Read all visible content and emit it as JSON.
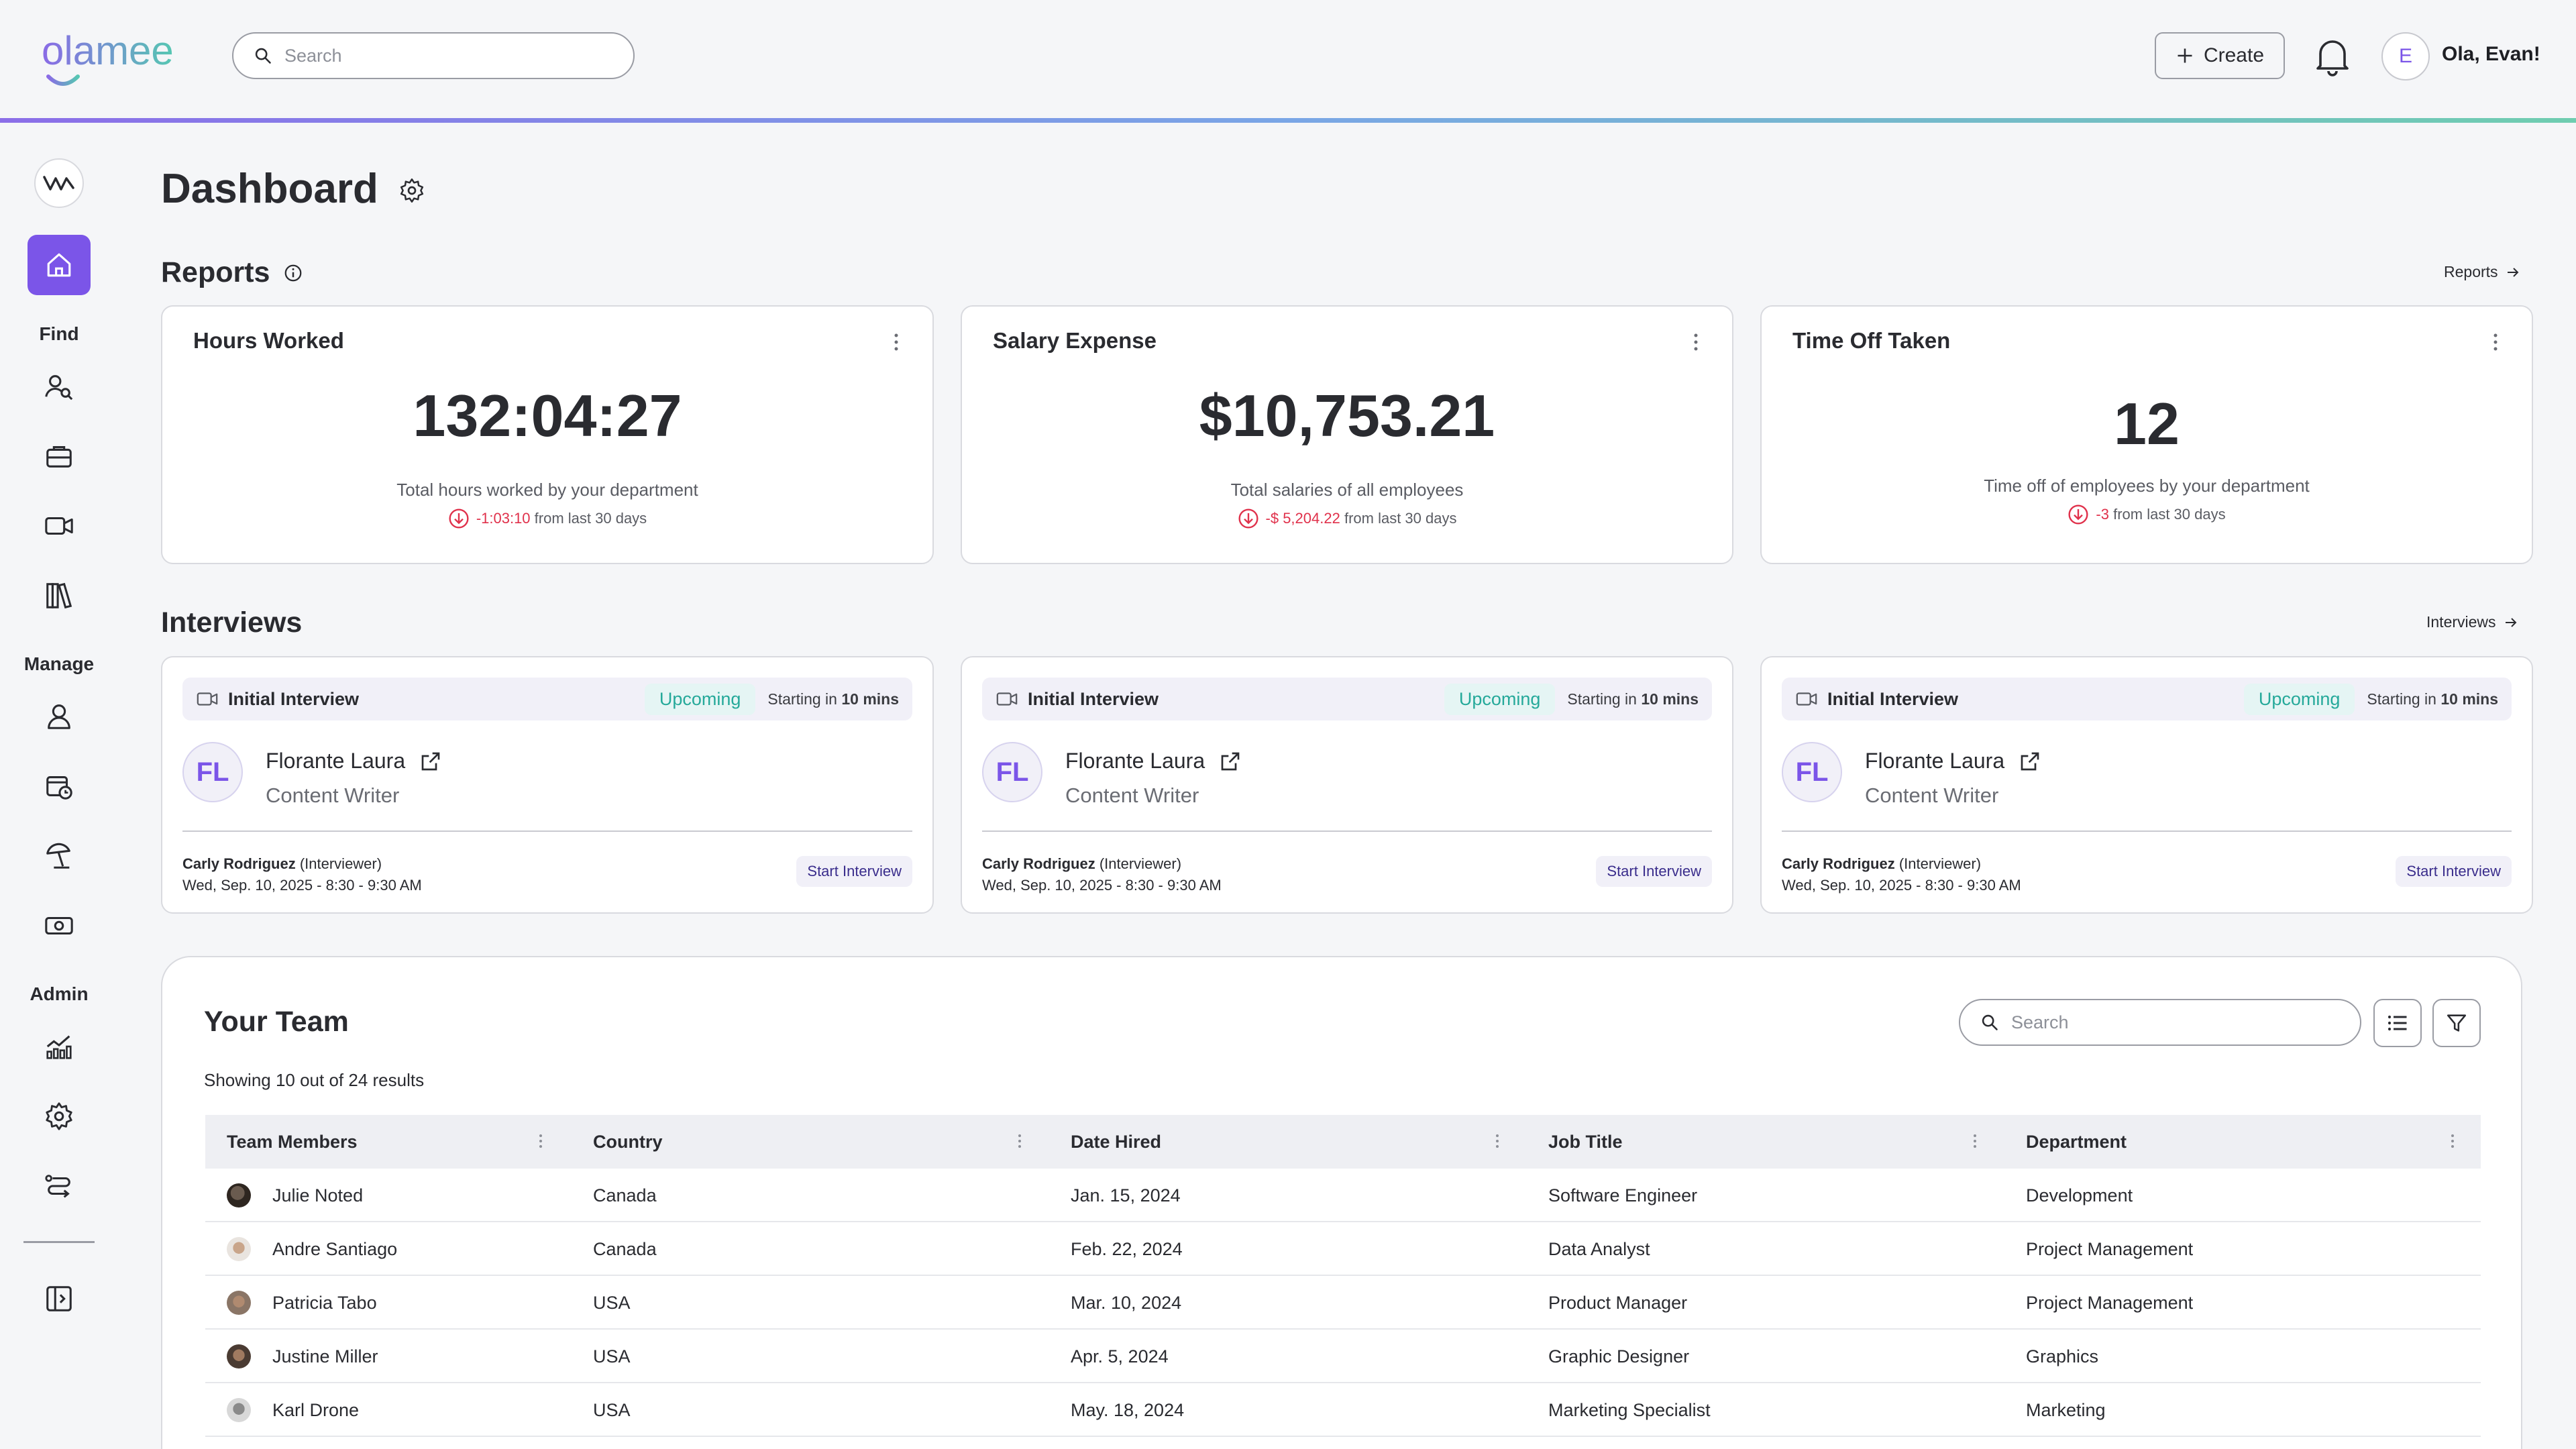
{
  "header": {
    "brand": "olamee",
    "search_placeholder": "Search",
    "create_label": "Create",
    "avatar_initial": "E",
    "greeting": "Ola, Evan!"
  },
  "sidebar": {
    "sections": [
      {
        "label": "Find",
        "items": [
          "people-search-icon",
          "briefcase-icon",
          "video-icon",
          "library-icon"
        ]
      },
      {
        "label": "Manage",
        "items": [
          "person-icon",
          "calendar-clock-icon",
          "beach-umbrella-icon",
          "money-icon"
        ]
      },
      {
        "label": "Admin",
        "items": [
          "analytics-icon",
          "gear-icon",
          "workflow-icon"
        ]
      }
    ]
  },
  "page": {
    "title": "Dashboard"
  },
  "reports": {
    "title": "Reports",
    "link": "Reports",
    "cards": [
      {
        "title": "Hours Worked",
        "value": "132:04:27",
        "sub": "Total hours worked by your department",
        "delta": "-1:03:10",
        "delta_suffix": "from last 30 days"
      },
      {
        "title": "Salary Expense",
        "value": "$10,753.21",
        "sub": "Total salaries of all employees",
        "delta": "-$ 5,204.22",
        "delta_suffix": "from last 30 days"
      },
      {
        "title": "Time Off Taken",
        "value": "12",
        "sub": "Time off of employees by your department",
        "delta": "-3",
        "delta_suffix": "from last 30 days"
      }
    ]
  },
  "interviews": {
    "title": "Interviews",
    "link": "Interviews",
    "cards": [
      {
        "type": "Initial Interview",
        "status": "Upcoming",
        "starting_prefix": "Starting in",
        "starting_time": "10 mins",
        "initials": "FL",
        "name": "Florante Laura",
        "role": "Content Writer",
        "interviewer": "Carly Rodriguez",
        "interviewer_tag": "(Interviewer)",
        "datetime": "Wed, Sep. 10, 2025 - 8:30 - 9:30 AM",
        "action": "Start Interview"
      },
      {
        "type": "Initial Interview",
        "status": "Upcoming",
        "starting_prefix": "Starting in",
        "starting_time": "10 mins",
        "initials": "FL",
        "name": "Florante Laura",
        "role": "Content Writer",
        "interviewer": "Carly Rodriguez",
        "interviewer_tag": "(Interviewer)",
        "datetime": "Wed, Sep. 10, 2025 - 8:30 - 9:30 AM",
        "action": "Start Interview"
      },
      {
        "type": "Initial Interview",
        "status": "Upcoming",
        "starting_prefix": "Starting in",
        "starting_time": "10 mins",
        "initials": "FL",
        "name": "Florante Laura",
        "role": "Content Writer",
        "interviewer": "Carly Rodriguez",
        "interviewer_tag": "(Interviewer)",
        "datetime": "Wed, Sep. 10, 2025 - 8:30 - 9:30 AM",
        "action": "Start Interview"
      }
    ]
  },
  "team": {
    "title": "Your Team",
    "search_placeholder": "Search",
    "results": "Showing 10 out of 24 results",
    "columns": [
      "Team Members",
      "Country",
      "Date Hired",
      "Job Title",
      "Department"
    ],
    "rows": [
      {
        "name": "Julie Noted",
        "country": "Canada",
        "date": "Jan. 15, 2024",
        "job": "Software Engineer",
        "dept": "Development"
      },
      {
        "name": "Andre Santiago",
        "country": "Canada",
        "date": "Feb. 22, 2024",
        "job": "Data Analyst",
        "dept": "Project Management"
      },
      {
        "name": "Patricia Tabo",
        "country": "USA",
        "date": "Mar. 10, 2024",
        "job": "Product Manager",
        "dept": "Project Management"
      },
      {
        "name": "Justine Miller",
        "country": "USA",
        "date": "Apr. 5, 2024",
        "job": "Graphic Designer",
        "dept": "Graphics"
      },
      {
        "name": "Karl Drone",
        "country": "USA",
        "date": "May. 18, 2024",
        "job": "Marketing Specialist",
        "dept": "Marketing"
      }
    ]
  },
  "colors": {
    "accent": "#7b55e8",
    "teal": "#25a99a",
    "negative": "#e0314b"
  }
}
